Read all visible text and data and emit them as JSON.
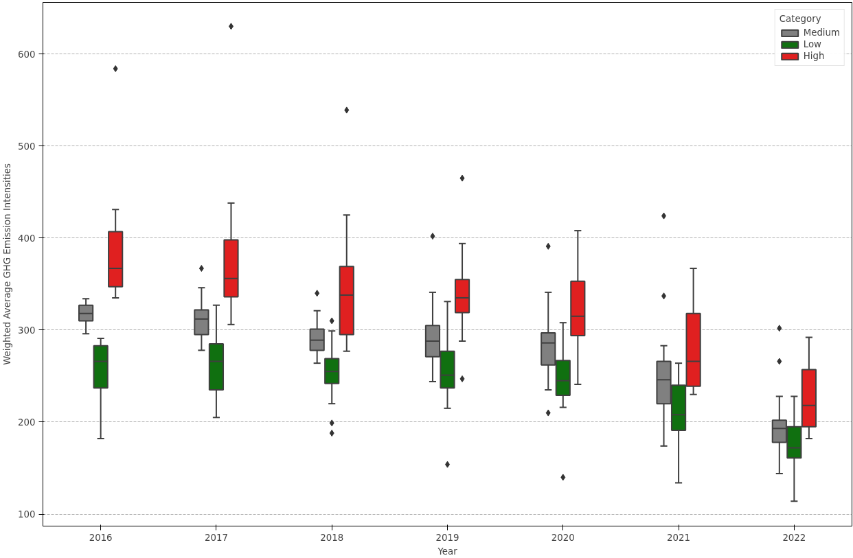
{
  "chart_data": {
    "type": "box",
    "xlabel": "Year",
    "ylabel": "Weighted Average GHG Emission Intensities",
    "legend_title": "Category",
    "legend": "top right",
    "grid": "y",
    "marker": "diamond",
    "categories": [
      "2016",
      "2017",
      "2018",
      "2019",
      "2020",
      "2021",
      "2022"
    ],
    "ylim": [
      87,
      656
    ],
    "yticks": [
      100,
      200,
      300,
      400,
      500,
      600
    ],
    "series": [
      {
        "name": "Medium",
        "color": "#808080",
        "boxes": [
          {
            "low": 296,
            "q1": 310,
            "median": 318,
            "q3": 327,
            "high": 334
          },
          {
            "low": 278,
            "q1": 295,
            "median": 312,
            "q3": 322,
            "high": 346,
            "outliers": [
              367
            ]
          },
          {
            "low": 264,
            "q1": 278,
            "median": 289,
            "q3": 301,
            "high": 321,
            "outliers": [
              340
            ]
          },
          {
            "low": 244,
            "q1": 271,
            "median": 288,
            "q3": 305,
            "high": 341,
            "outliers": [
              402
            ]
          },
          {
            "low": 235,
            "q1": 262,
            "median": 286,
            "q3": 297,
            "high": 341,
            "outliers": [
              391,
              210
            ]
          },
          {
            "low": 174,
            "q1": 220,
            "median": 246,
            "q3": 266,
            "high": 283,
            "outliers": [
              424,
              337
            ]
          },
          {
            "low": 144,
            "q1": 178,
            "median": 193,
            "q3": 202,
            "high": 228,
            "outliers": [
              302,
              266
            ]
          }
        ]
      },
      {
        "name": "Low",
        "color": "#107010",
        "boxes": [
          {
            "low": 182,
            "q1": 237,
            "median": 266,
            "q3": 283,
            "high": 291
          },
          {
            "low": 205,
            "q1": 235,
            "median": 266,
            "q3": 285,
            "high": 327
          },
          {
            "low": 220,
            "q1": 242,
            "median": 255,
            "q3": 269,
            "high": 299,
            "outliers": [
              310,
              199,
              188
            ]
          },
          {
            "low": 215,
            "q1": 237,
            "median": 251,
            "q3": 277,
            "high": 331,
            "outliers": [
              154
            ]
          },
          {
            "low": 216,
            "q1": 229,
            "median": 245,
            "q3": 267,
            "high": 308,
            "outliers": [
              140
            ]
          },
          {
            "low": 134,
            "q1": 191,
            "median": 208,
            "q3": 240,
            "high": 264
          },
          {
            "low": 114,
            "q1": 161,
            "median": 172,
            "q3": 195,
            "high": 228
          }
        ]
      },
      {
        "name": "High",
        "color": "#e02020",
        "boxes": [
          {
            "low": 335,
            "q1": 347,
            "median": 367,
            "q3": 407,
            "high": 431,
            "outliers": [
              584
            ]
          },
          {
            "low": 306,
            "q1": 336,
            "median": 356,
            "q3": 398,
            "high": 438,
            "outliers": [
              630
            ]
          },
          {
            "low": 277,
            "q1": 295,
            "median": 338,
            "q3": 369,
            "high": 425,
            "outliers": [
              539
            ]
          },
          {
            "low": 288,
            "q1": 319,
            "median": 335,
            "q3": 355,
            "high": 394,
            "outliers": [
              465,
              247
            ]
          },
          {
            "low": 241,
            "q1": 294,
            "median": 315,
            "q3": 353,
            "high": 408
          },
          {
            "low": 230,
            "q1": 239,
            "median": 266,
            "q3": 318,
            "high": 367
          },
          {
            "low": 182,
            "q1": 195,
            "median": 218,
            "q3": 257,
            "high": 292
          }
        ]
      }
    ]
  }
}
